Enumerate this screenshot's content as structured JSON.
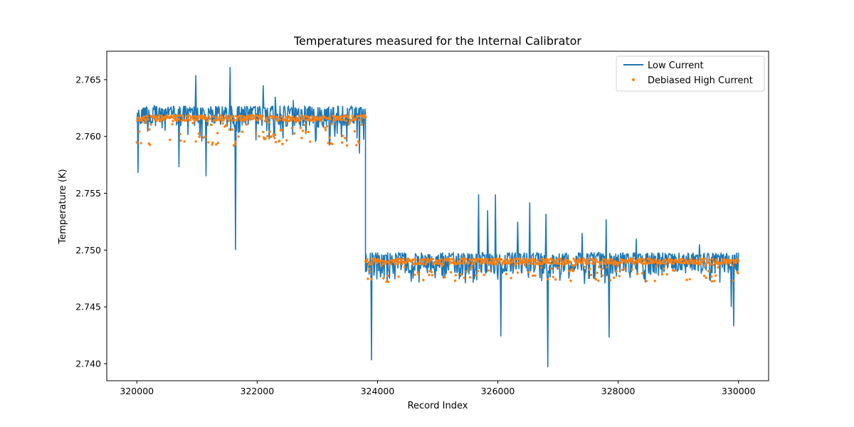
{
  "chart_data": {
    "type": "line",
    "title": "Temperatures measured for the Internal Calibrator",
    "xlabel": "Record Index",
    "ylabel": "Temperature (K)",
    "xlim": [
      319500,
      330500
    ],
    "ylim": [
      2.7385,
      2.7675
    ],
    "xticks": [
      320000,
      322000,
      324000,
      326000,
      328000,
      330000
    ],
    "yticks": [
      2.74,
      2.745,
      2.75,
      2.755,
      2.76,
      2.765
    ],
    "ytick_labels": [
      "2.740",
      "2.745",
      "2.750",
      "2.755",
      "2.760",
      "2.765"
    ],
    "grid": false,
    "legend": "top-right",
    "series": [
      {
        "name": "Low Current",
        "kind": "line",
        "color": "#1f77b4",
        "segments": [
          {
            "x_start": 320000,
            "x_end": 323800,
            "base": 2.7615,
            "band_low": 2.7595,
            "band_high": 2.7627
          },
          {
            "x_start": 323800,
            "x_end": 330000,
            "base": 2.7485,
            "band_low": 2.747,
            "band_high": 2.7498
          }
        ],
        "spikes": [
          {
            "x": 320020,
            "y": 2.7568
          },
          {
            "x": 320700,
            "y": 2.7573
          },
          {
            "x": 320980,
            "y": 2.7654
          },
          {
            "x": 321150,
            "y": 2.7565
          },
          {
            "x": 321550,
            "y": 2.7661
          },
          {
            "x": 321640,
            "y": 2.75
          },
          {
            "x": 322100,
            "y": 2.7645
          },
          {
            "x": 322300,
            "y": 2.7635
          },
          {
            "x": 322600,
            "y": 2.7632
          },
          {
            "x": 323200,
            "y": 2.7592
          },
          {
            "x": 323700,
            "y": 2.7585
          },
          {
            "x": 323900,
            "y": 2.7403
          },
          {
            "x": 325680,
            "y": 2.7549
          },
          {
            "x": 325830,
            "y": 2.7535
          },
          {
            "x": 325960,
            "y": 2.7549
          },
          {
            "x": 326050,
            "y": 2.7424
          },
          {
            "x": 326330,
            "y": 2.7525
          },
          {
            "x": 326530,
            "y": 2.7542
          },
          {
            "x": 326800,
            "y": 2.7532
          },
          {
            "x": 326830,
            "y": 2.7397
          },
          {
            "x": 327400,
            "y": 2.7515
          },
          {
            "x": 327800,
            "y": 2.7527
          },
          {
            "x": 327850,
            "y": 2.7423
          },
          {
            "x": 328300,
            "y": 2.751
          },
          {
            "x": 329350,
            "y": 2.7505
          },
          {
            "x": 329880,
            "y": 2.745
          },
          {
            "x": 329920,
            "y": 2.7433
          }
        ]
      },
      {
        "name": "Debiased High Current",
        "kind": "scatter",
        "color": "#ff7f0e",
        "segments": [
          {
            "x_start": 320000,
            "x_end": 323800,
            "base": 2.7616,
            "dip_low": 2.7592
          },
          {
            "x_start": 323800,
            "x_end": 330000,
            "base": 2.749,
            "dip_low": 2.7472
          }
        ]
      }
    ]
  }
}
